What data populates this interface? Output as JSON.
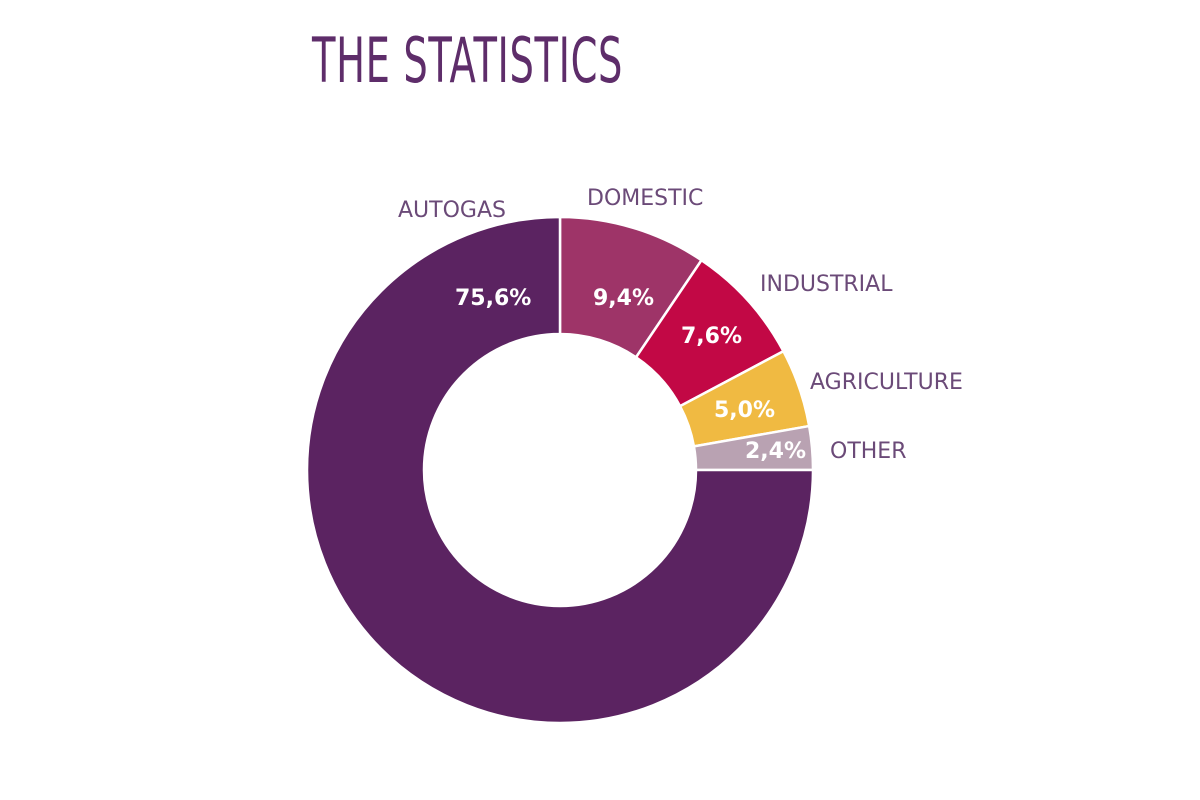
{
  "title": "THE STATISTICS",
  "chart_data": {
    "type": "pie",
    "style": "donut",
    "title": "THE STATISTICS",
    "categories": [
      "DOMESTIC",
      "INDUSTRIAL",
      "AGRICULTURE",
      "OTHER",
      "AUTOGAS"
    ],
    "values": [
      9.4,
      7.6,
      5.0,
      2.4,
      75.6
    ],
    "value_labels": [
      "9,4%",
      "7,6%",
      "5,0%",
      "2,4%",
      "75,6%"
    ],
    "colors": [
      "#9e3468",
      "#c20845",
      "#f0ba42",
      "#b9a2b2",
      "#5b2361"
    ],
    "start_angle": "12 o'clock, clockwise",
    "legend": "labels placed outside slices"
  },
  "labels": {
    "autogas": "AUTOGAS",
    "domestic": "DOMESTIC",
    "industrial": "INDUSTRIAL",
    "agriculture": "AGRICULTURE",
    "other": "OTHER",
    "autogas_val": "75,6%",
    "domestic_val": "9,4%",
    "industrial_val": "7,6%",
    "agriculture_val": "5,0%",
    "other_val": "2,4%"
  }
}
